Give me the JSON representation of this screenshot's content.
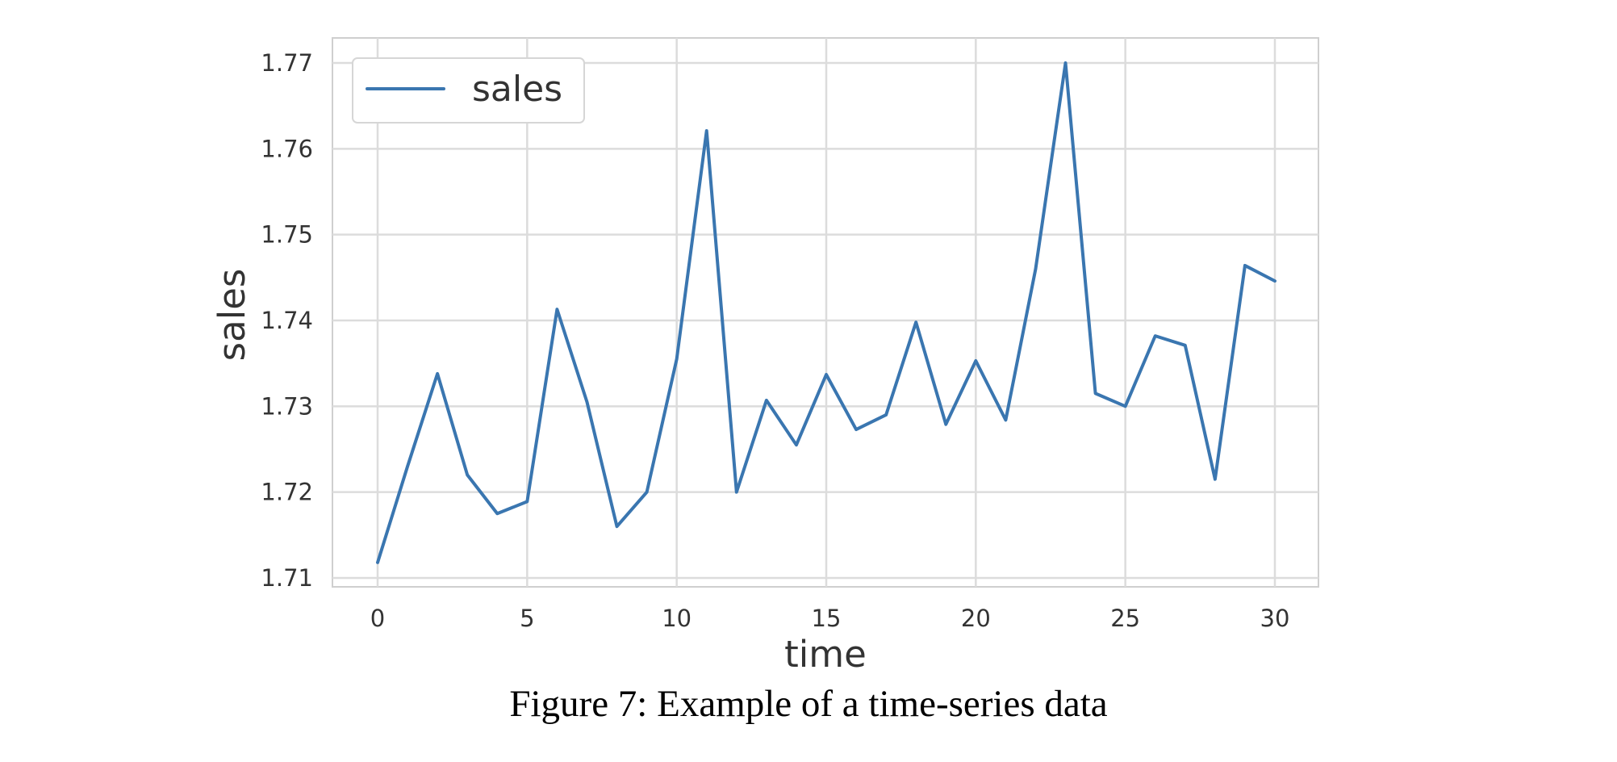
{
  "figure": {
    "caption": "Figure 7: Example of a time-series data"
  },
  "colors": {
    "series": "#3a76b0",
    "grid": "#dcdcdc",
    "frame": "#cfcfcf",
    "text": "#333333"
  },
  "chart_data": {
    "type": "line",
    "xlabel": "time",
    "ylabel": "sales",
    "xlim": [
      0,
      30
    ],
    "ylim": [
      1.71,
      1.77
    ],
    "xticks": [
      0,
      5,
      10,
      15,
      20,
      25,
      30
    ],
    "yticks": [
      1.71,
      1.72,
      1.73,
      1.74,
      1.75,
      1.76,
      1.77
    ],
    "grid": true,
    "legend": {
      "placement": "top-left"
    },
    "x": [
      0,
      1,
      2,
      3,
      4,
      5,
      6,
      7,
      8,
      9,
      10,
      11,
      12,
      13,
      14,
      15,
      16,
      17,
      18,
      19,
      20,
      21,
      22,
      23,
      24,
      25,
      26,
      27,
      28,
      29,
      30
    ],
    "series": [
      {
        "name": "sales",
        "values": [
          1.7118,
          1.723,
          1.7338,
          1.722,
          1.7175,
          1.7189,
          1.7413,
          1.7305,
          1.716,
          1.72,
          1.7355,
          1.7621,
          1.72,
          1.7307,
          1.7255,
          1.7337,
          1.7273,
          1.729,
          1.7398,
          1.7279,
          1.7353,
          1.7284,
          1.746,
          1.77,
          1.7315,
          1.73,
          1.7382,
          1.7371,
          1.7215,
          1.7464,
          1.7446
        ]
      }
    ]
  }
}
